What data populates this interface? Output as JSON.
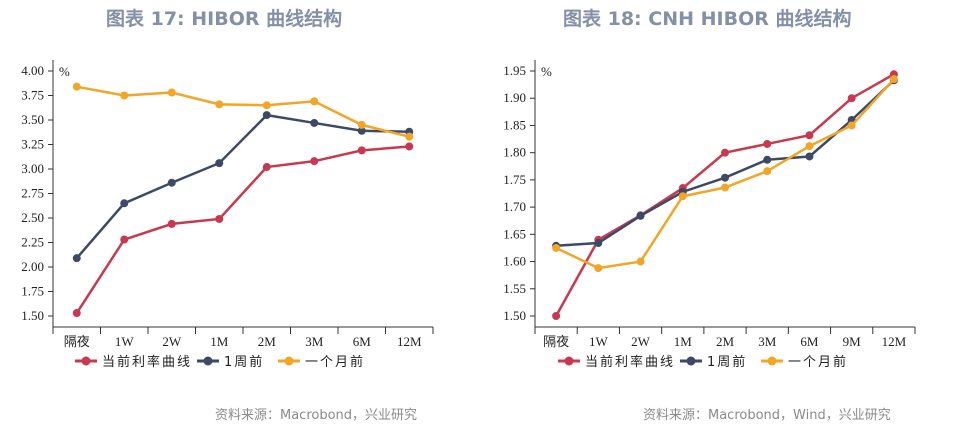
{
  "colors": {
    "current": "#c8394f",
    "week": "#3d4a66",
    "month": "#f2a526"
  },
  "chart_data": [
    {
      "type": "line",
      "title": "图表 17: HIBOR 曲线结构",
      "ylabel": "%",
      "ylim": [
        1.5,
        4.0
      ],
      "yticks": [
        "1.50",
        "1.75",
        "2.00",
        "2.25",
        "2.50",
        "2.75",
        "3.00",
        "3.25",
        "3.50",
        "3.75",
        "4.00"
      ],
      "categories": [
        "隔夜",
        "1W",
        "2W",
        "1M",
        "2M",
        "3M",
        "6M",
        "12M"
      ],
      "legend_position": "bottom",
      "series": [
        {
          "name": "当前利率曲线",
          "values": [
            1.53,
            2.28,
            2.44,
            2.49,
            3.02,
            3.08,
            3.19,
            3.23
          ]
        },
        {
          "name": "1周前",
          "values": [
            2.09,
            2.65,
            2.86,
            3.06,
            3.55,
            3.47,
            3.39,
            3.38
          ]
        },
        {
          "name": "一个月前",
          "values": [
            3.84,
            3.75,
            3.78,
            3.66,
            3.65,
            3.69,
            3.45,
            3.33
          ]
        }
      ],
      "source": "资料来源：Macrobond，兴业研究"
    },
    {
      "type": "line",
      "title": "图表 18: CNH HIBOR 曲线结构",
      "ylabel": "%",
      "ylim": [
        1.5,
        1.95
      ],
      "yticks": [
        "1.50",
        "1.55",
        "1.60",
        "1.65",
        "1.70",
        "1.75",
        "1.80",
        "1.85",
        "1.90",
        "1.95"
      ],
      "categories": [
        "隔夜",
        "1W",
        "2W",
        "1M",
        "2M",
        "3M",
        "6M",
        "9M",
        "12M"
      ],
      "legend_position": "bottom",
      "series": [
        {
          "name": "当前利率曲线",
          "values": [
            1.5,
            1.64,
            1.685,
            1.735,
            1.8,
            1.816,
            1.832,
            1.9,
            1.944
          ]
        },
        {
          "name": "1周前",
          "values": [
            1.629,
            1.634,
            1.684,
            1.728,
            1.754,
            1.787,
            1.793,
            1.86,
            1.933
          ]
        },
        {
          "name": "一个月前",
          "values": [
            1.625,
            1.588,
            1.6,
            1.72,
            1.736,
            1.766,
            1.812,
            1.85,
            1.935
          ]
        }
      ],
      "source": "资料来源：Macrobond，Wind，兴业研究"
    }
  ]
}
